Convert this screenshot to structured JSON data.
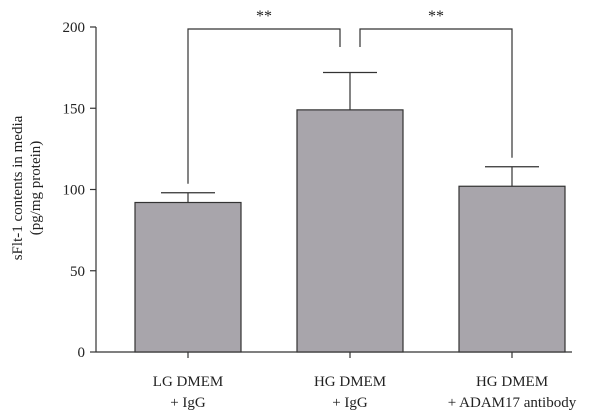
{
  "chart_data": {
    "type": "bar",
    "categories": [
      [
        "LG DMEM",
        "+ IgG"
      ],
      [
        "HG DMEM",
        "+ IgG"
      ],
      [
        "HG DMEM",
        "+ ADAM17 antibody"
      ]
    ],
    "values": [
      92,
      149,
      102
    ],
    "errors": [
      6,
      23,
      12
    ],
    "ylabel_lines": [
      "sFlt-1 contents in media",
      "(pg/mg protein)"
    ],
    "ylim": [
      0,
      200
    ],
    "yticks": [
      0,
      50,
      100,
      150,
      200
    ],
    "bar_color": "#a8a5ab",
    "significance": [
      {
        "from": 0,
        "to": 1,
        "label": "**"
      },
      {
        "from": 1,
        "to": 2,
        "label": "**"
      }
    ]
  }
}
